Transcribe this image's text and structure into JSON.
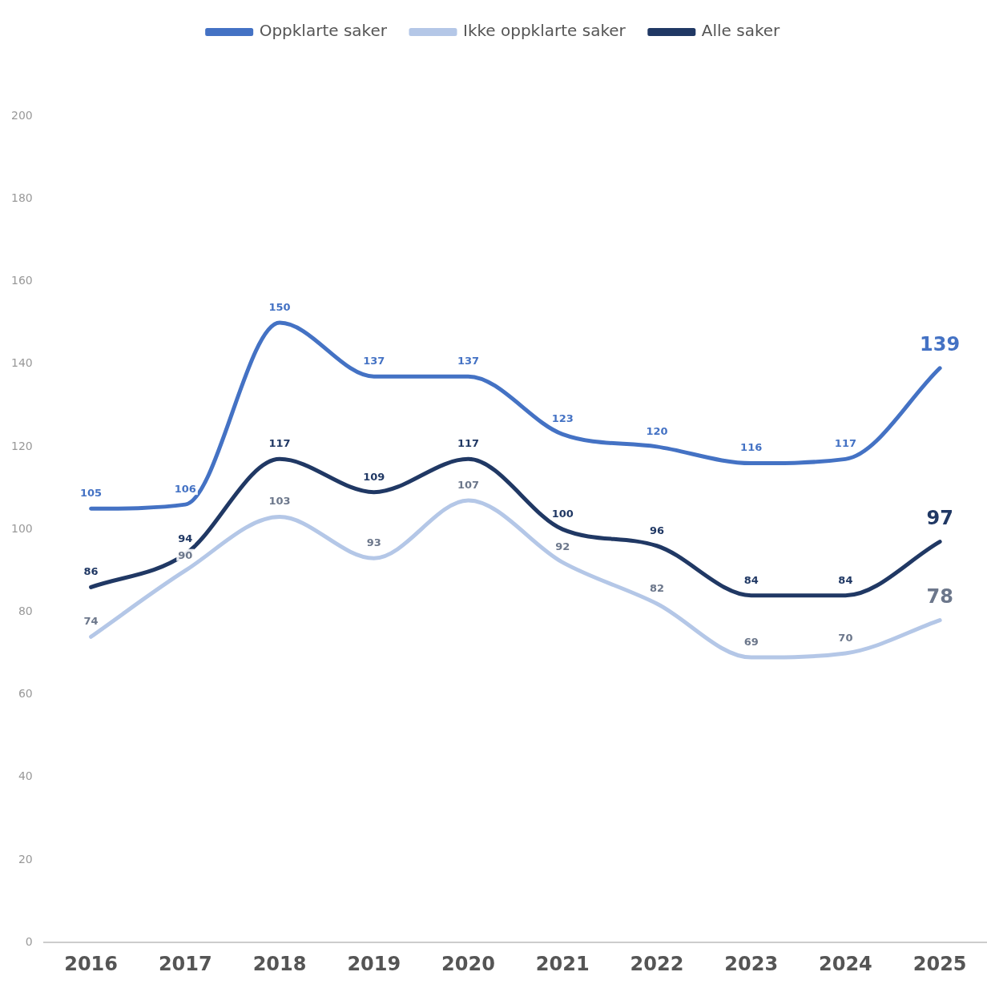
{
  "chart_data": {
    "type": "line",
    "categories": [
      "2016",
      "2017",
      "2018",
      "2019",
      "2020",
      "2021",
      "2022",
      "2023",
      "2024",
      "2025"
    ],
    "series": [
      {
        "name": "Oppklarte saker",
        "color": "#4472c4",
        "values": [
          105,
          106,
          150,
          137,
          137,
          123,
          120,
          116,
          117,
          139
        ]
      },
      {
        "name": "Ikke oppklarte saker",
        "color": "#b4c7e7",
        "values": [
          74,
          90,
          103,
          93,
          107,
          92,
          82,
          69,
          70,
          78
        ]
      },
      {
        "name": "Alle saker",
        "color": "#203864",
        "values": [
          86,
          94,
          117,
          109,
          117,
          100,
          96,
          84,
          84,
          97
        ]
      }
    ],
    "ylim": [
      0,
      200
    ],
    "yticks": [
      0,
      20,
      40,
      60,
      80,
      100,
      120,
      140,
      160,
      180,
      200
    ],
    "grid": false,
    "legend": "top",
    "marker": "none",
    "line_style": "solid",
    "data_labels": true
  }
}
